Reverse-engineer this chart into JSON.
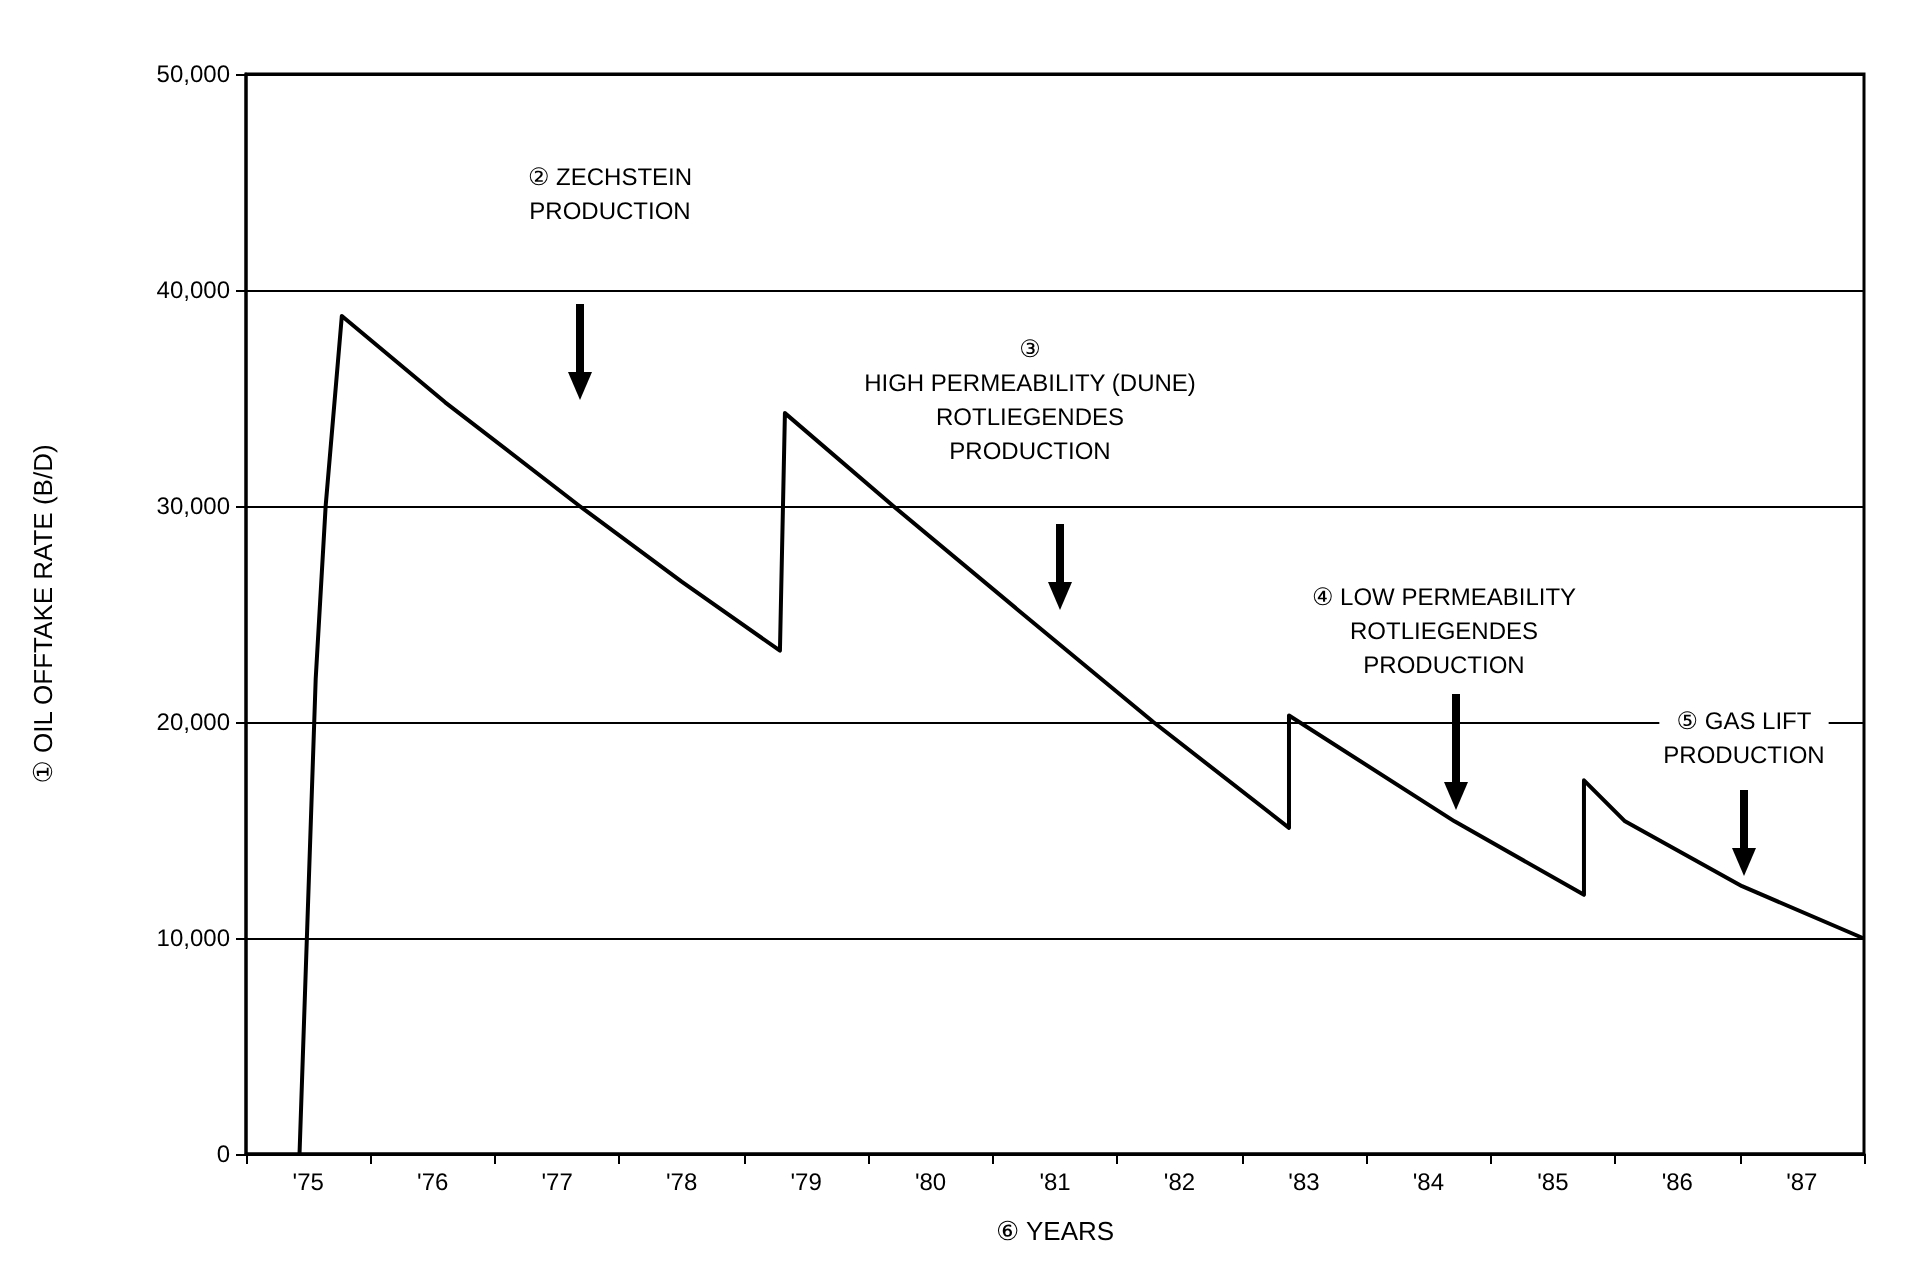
{
  "chart_data": {
    "type": "line",
    "xlabel": "⑥ YEARS",
    "ylabel": "① OIL OFFTAKE RATE (B/D)",
    "xlim": [
      1974.5,
      1987.5
    ],
    "xticks": [
      {
        "value": 1974.5,
        "label": null
      },
      {
        "value": 1975,
        "label": "'75"
      },
      {
        "value": 1975.5,
        "label": null
      },
      {
        "value": 1976,
        "label": "'76"
      },
      {
        "value": 1976.5,
        "label": null
      },
      {
        "value": 1977,
        "label": "'77"
      },
      {
        "value": 1977.5,
        "label": null
      },
      {
        "value": 1978,
        "label": "'78"
      },
      {
        "value": 1978.5,
        "label": null
      },
      {
        "value": 1979,
        "label": "'79"
      },
      {
        "value": 1979.5,
        "label": null
      },
      {
        "value": 1980,
        "label": "'80"
      },
      {
        "value": 1980.5,
        "label": null
      },
      {
        "value": 1981,
        "label": "'81"
      },
      {
        "value": 1981.5,
        "label": null
      },
      {
        "value": 1982,
        "label": "'82"
      },
      {
        "value": 1982.5,
        "label": null
      },
      {
        "value": 1983,
        "label": "'83"
      },
      {
        "value": 1983.5,
        "label": null
      },
      {
        "value": 1984,
        "label": "'84"
      },
      {
        "value": 1984.5,
        "label": null
      },
      {
        "value": 1985,
        "label": "'85"
      },
      {
        "value": 1985.5,
        "label": null
      },
      {
        "value": 1986,
        "label": "'86"
      },
      {
        "value": 1986.5,
        "label": null
      },
      {
        "value": 1987,
        "label": "'87"
      },
      {
        "value": 1987.5,
        "label": null
      }
    ],
    "ylim": [
      0,
      50000
    ],
    "yticks": [
      0,
      {
        "value": 10000,
        "label": "10,000"
      },
      {
        "value": 20000,
        "label": "20,000"
      },
      {
        "value": 30000,
        "label": "30,000"
      },
      {
        "value": 40000,
        "label": "40,000"
      },
      {
        "value": 50000,
        "label": "50,000"
      }
    ],
    "grid": "y",
    "marker": "none",
    "line_style": "solid",
    "series": [
      {
        "color": "#000000",
        "x": [
          1974.93,
          1975.06,
          1975.14,
          1975.27,
          1976.1,
          1977.18,
          1978.0,
          1978.79,
          1978.83,
          1979.7,
          1980.7,
          1981.79,
          1982.88,
          1982.88,
          1984.21,
          1985.25,
          1985.25,
          1985.58,
          1986.52,
          1987.49
        ],
        "values": [
          0,
          22000,
          30000,
          38800,
          34800,
          30000,
          26500,
          23300,
          34300,
          30000,
          25200,
          20000,
          15100,
          20300,
          15400,
          12000,
          17300,
          15400,
          12400,
          10000
        ]
      }
    ],
    "annotations": [
      "② ZECHSTEIN\nPRODUCTION",
      "③\nHIGH PERMEABILITY (DUNE)\nROTLIEGENDES\nPRODUCTION",
      "④ LOW PERMEABILITY\nROTLIEGENDES\nPRODUCTION",
      "⑤ GAS LIFT\nPRODUCTION"
    ]
  }
}
